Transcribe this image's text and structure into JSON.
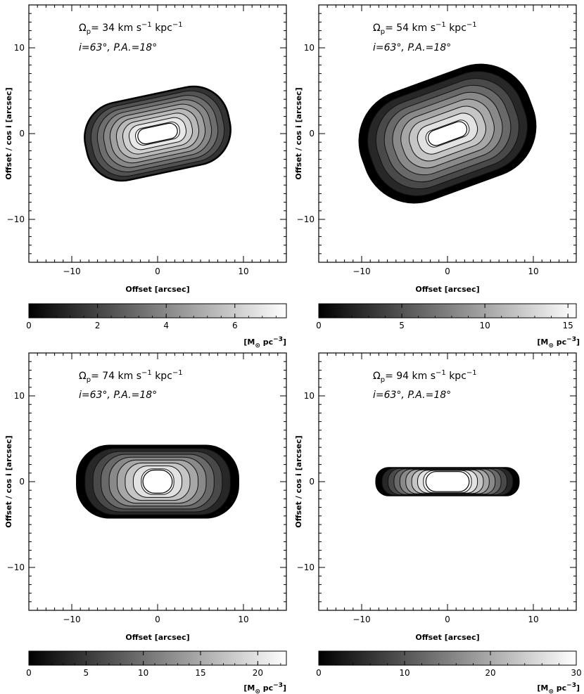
{
  "chart_data": [
    {
      "type": "heatmap",
      "annotation": {
        "omega_prefix": "Ω",
        "omega_sub": "p",
        "omega_value": "= 34 km s",
        "omega_exp1": "−1",
        "omega_unit2": " kpc",
        "omega_exp2": "−1",
        "inclination": "i=63°, P.A.=18°"
      },
      "xlabel": "Offset [arcsec]",
      "ylabel": "Offset / cos i [arcsec]",
      "xlim": [
        -15,
        15
      ],
      "ylim": [
        -15,
        15
      ],
      "xticks": [
        "−10",
        "0",
        "10"
      ],
      "xtick_values": [
        -10,
        0,
        10
      ],
      "yticks": [
        "10",
        "0",
        "−10"
      ],
      "ytick_values": [
        10,
        0,
        -10
      ],
      "region": {
        "half_width": 8.5,
        "half_height": 4.6,
        "rotation_deg": 12,
        "base_level": 0.2
      },
      "core": {
        "half_width": 2.6,
        "half_height": 1.0
      },
      "colorbar": {
        "min": 0,
        "max": 7.5,
        "ticks": [
          "0",
          "2",
          "4",
          "6"
        ],
        "tick_values": [
          0,
          2,
          4,
          6
        ],
        "units_prefix": "[M",
        "units_sub": "⊙",
        "units_mid": " pc",
        "units_exp": "−3",
        "units_suffix": "]"
      }
    },
    {
      "type": "heatmap",
      "annotation": {
        "omega_prefix": "Ω",
        "omega_sub": "p",
        "omega_value": "= 54 km s",
        "omega_exp1": "−1",
        "omega_unit2": " kpc",
        "omega_exp2": "−1",
        "inclination": "i=63°, P.A.=18°"
      },
      "xlabel": "Offset [arcsec]",
      "ylabel": "Offset / cos i [arcsec]",
      "xlim": [
        -15,
        15
      ],
      "ylim": [
        -15,
        15
      ],
      "xticks": [
        "−10",
        "0",
        "10"
      ],
      "xtick_values": [
        -10,
        0,
        10
      ],
      "yticks": [
        "10",
        "0",
        "−10"
      ],
      "ytick_values": [
        10,
        0,
        -10
      ],
      "region": {
        "half_width": 10.3,
        "half_height": 6.6,
        "rotation_deg": 20,
        "base_level": 0.0
      },
      "core": {
        "half_width": 2.6,
        "half_height": 1.0
      },
      "colorbar": {
        "min": 0,
        "max": 15.5,
        "ticks": [
          "0",
          "5",
          "10",
          "15"
        ],
        "tick_values": [
          0,
          5,
          10,
          15
        ],
        "units_prefix": "[M",
        "units_sub": "⊙",
        "units_mid": " pc",
        "units_exp": "−3",
        "units_suffix": "]"
      }
    },
    {
      "type": "heatmap",
      "annotation": {
        "omega_prefix": "Ω",
        "omega_sub": "p",
        "omega_value": "= 74 km s",
        "omega_exp1": "−1",
        "omega_unit2": " kpc",
        "omega_exp2": "−1",
        "inclination": "i=63°, P.A.=18°"
      },
      "xlabel": "Offset [arcsec]",
      "ylabel": "Offset / cos i [arcsec]",
      "xlim": [
        -15,
        15
      ],
      "ylim": [
        -15,
        15
      ],
      "xticks": [
        "−10",
        "0",
        "10"
      ],
      "xtick_values": [
        -10,
        0,
        10
      ],
      "yticks": [
        "10",
        "0",
        "−10"
      ],
      "ytick_values": [
        10,
        0,
        -10
      ],
      "region": {
        "half_width": 9.4,
        "half_height": 4.2,
        "rotation_deg": 0,
        "base_level": 0.0
      },
      "core": {
        "half_width": 1.9,
        "half_height": 1.5
      },
      "colorbar": {
        "min": 0,
        "max": 22.5,
        "ticks": [
          "0",
          "5",
          "10",
          "15",
          "20"
        ],
        "tick_values": [
          0,
          5,
          10,
          15,
          20
        ],
        "units_prefix": "[M",
        "units_sub": "⊙",
        "units_mid": " pc",
        "units_exp": "−3",
        "units_suffix": "]"
      }
    },
    {
      "type": "heatmap",
      "annotation": {
        "omega_prefix": "Ω",
        "omega_sub": "p",
        "omega_value": "= 94 km s",
        "omega_exp1": "−1",
        "omega_unit2": " kpc",
        "omega_exp2": "−1",
        "inclination": "i=63°, P.A.=18°"
      },
      "xlabel": "Offset [arcsec]",
      "ylabel": "Offset / cos i [arcsec]",
      "xlim": [
        -15,
        15
      ],
      "ylim": [
        -15,
        15
      ],
      "xticks": [
        "−10",
        "0",
        "10"
      ],
      "xtick_values": [
        -10,
        0,
        10
      ],
      "yticks": [
        "10",
        "0",
        "−10"
      ],
      "ytick_values": [
        10,
        0,
        -10
      ],
      "region": {
        "half_width": 8.3,
        "half_height": 1.6,
        "rotation_deg": 0,
        "base_level": 0.0
      },
      "core": {
        "half_width": 2.8,
        "half_height": 1.3
      },
      "colorbar": {
        "min": 0,
        "max": 30,
        "ticks": [
          "0",
          "10",
          "20",
          "30"
        ],
        "tick_values": [
          0,
          10,
          20,
          30
        ],
        "units_prefix": "[M",
        "units_sub": "⊙",
        "units_mid": " pc",
        "units_exp": "−3",
        "units_suffix": "]"
      }
    }
  ]
}
